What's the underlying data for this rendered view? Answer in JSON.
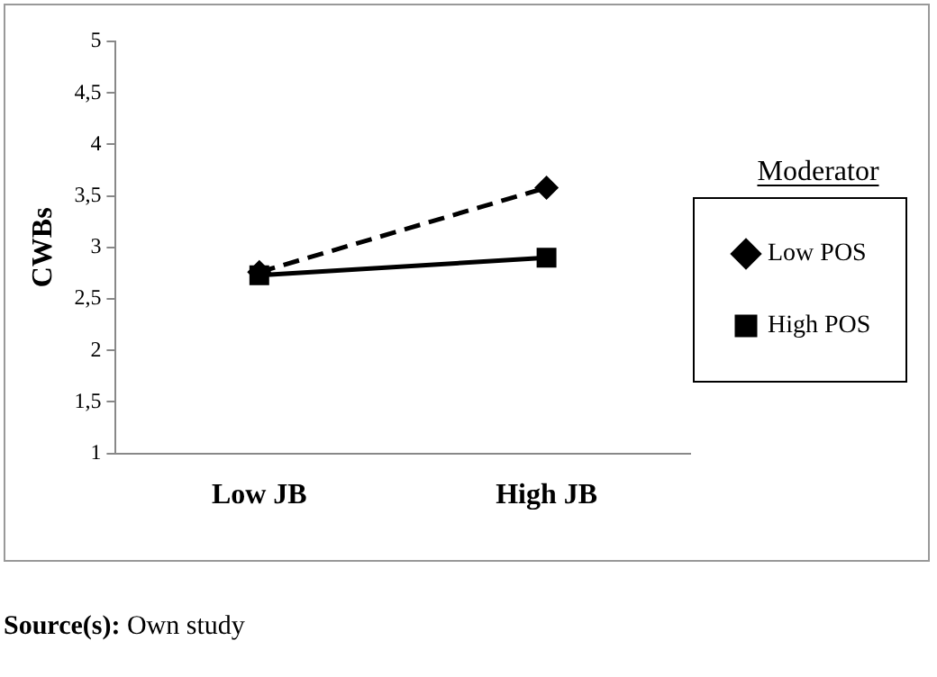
{
  "chart_data": {
    "type": "line",
    "ylabel": "CWBs",
    "legend_title": "Moderator",
    "categories": [
      "Low JB",
      "High JB"
    ],
    "series": [
      {
        "name": "Low POS",
        "color": "#000000",
        "values": [
          2.76,
          3.58
        ],
        "marker": "diamond",
        "line_style": "dashed"
      },
      {
        "name": "High POS",
        "color": "#000000",
        "values": [
          2.73,
          2.9
        ],
        "marker": "square",
        "line_style": "solid"
      }
    ],
    "ylim": [
      1,
      5
    ],
    "yticks": [
      1,
      {
        "value": 1.5,
        "label": "1,5"
      },
      2,
      {
        "value": 2.5,
        "label": "2,5"
      },
      3,
      {
        "value": 3.5,
        "label": "3,5"
      },
      4,
      {
        "value": 4.5,
        "label": "4,5"
      },
      5
    ],
    "grid": false,
    "legend": "right",
    "annotations": [
      "Source(s): Own study"
    ]
  }
}
